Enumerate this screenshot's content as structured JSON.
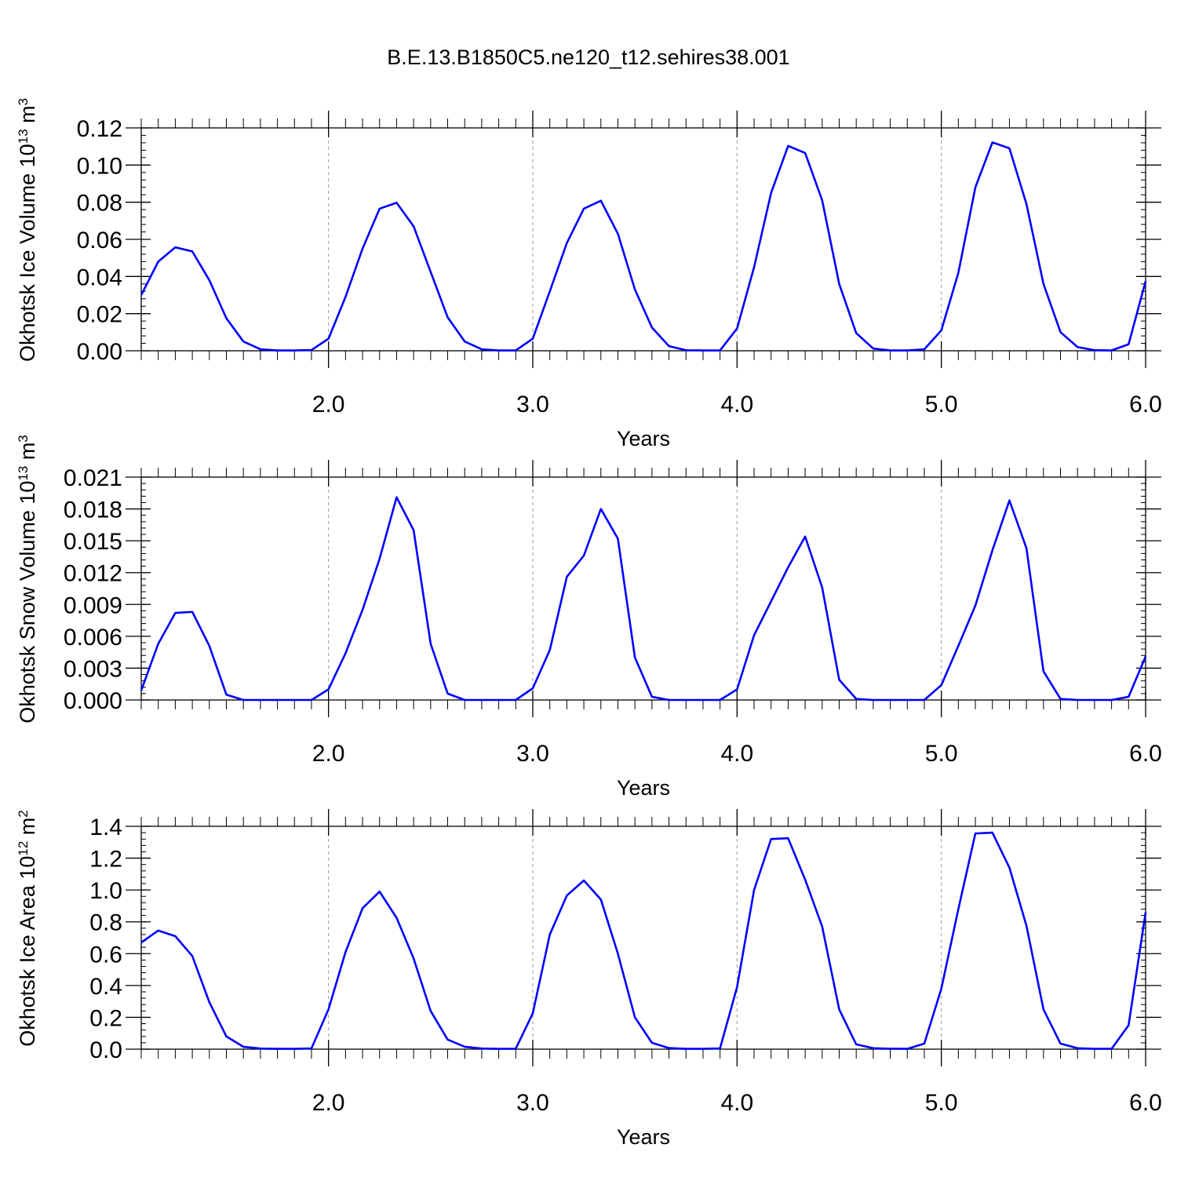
{
  "figure": {
    "title": "B.E.13.B1850C5.ne120_t12.sehires38.001",
    "line_color": "#0000ff"
  },
  "chart_data": [
    {
      "type": "line",
      "ylabel": "Okhotsk Ice Volume 10",
      "ylabel_exponent": "13",
      "ylabel_unit": " m",
      "ylabel_unit_exponent": "3",
      "xlabel": "Years",
      "xlim": [
        1.0833,
        6.0
      ],
      "ylim": [
        0,
        0.12
      ],
      "grid": "vertical-dashed",
      "x_ticks": [
        2.0,
        3.0,
        4.0,
        5.0,
        6.0
      ],
      "x_tick_labels": [
        "2.0",
        "3.0",
        "4.0",
        "5.0",
        "6.0"
      ],
      "y_ticks": [
        0,
        0.02,
        0.04,
        0.06,
        0.08,
        0.1,
        0.12
      ],
      "y_tick_labels": [
        "0.00",
        "0.02",
        "0.04",
        "0.06",
        "0.08",
        "0.10",
        "0.12"
      ],
      "y_minor_step": 0.004,
      "values": [
        0.03,
        0.048,
        0.0557,
        0.0535,
        0.038,
        0.0175,
        0.005,
        0.0008,
        0.0002,
        0.0002,
        0.0004,
        0.0065,
        0.029,
        0.055,
        0.0765,
        0.0797,
        0.067,
        0.0425,
        0.018,
        0.005,
        0.0008,
        0.0002,
        0.0002,
        0.0065,
        0.032,
        0.058,
        0.0765,
        0.0808,
        0.063,
        0.033,
        0.0125,
        0.0025,
        0.0003,
        0.0002,
        0.0002,
        0.012,
        0.045,
        0.085,
        0.1103,
        0.1065,
        0.081,
        0.036,
        0.0095,
        0.0012,
        0.0002,
        0.0002,
        0.0008,
        0.011,
        0.042,
        0.088,
        0.1122,
        0.109,
        0.079,
        0.036,
        0.01,
        0.002,
        0.0003,
        0.0002,
        0.0035,
        0.0375
      ]
    },
    {
      "type": "line",
      "ylabel": "Okhotsk Snow Volume 10",
      "ylabel_exponent": "13",
      "ylabel_unit": " m",
      "ylabel_unit_exponent": "3",
      "xlabel": "Years",
      "xlim": [
        1.0833,
        6.0
      ],
      "ylim": [
        0,
        0.021
      ],
      "grid": "vertical-dashed",
      "x_ticks": [
        2.0,
        3.0,
        4.0,
        5.0,
        6.0
      ],
      "x_tick_labels": [
        "2.0",
        "3.0",
        "4.0",
        "5.0",
        "6.0"
      ],
      "y_ticks": [
        0,
        0.003,
        0.006,
        0.009,
        0.012,
        0.015,
        0.018,
        0.021
      ],
      "y_tick_labels": [
        "0.000",
        "0.003",
        "0.006",
        "0.009",
        "0.012",
        "0.015",
        "0.018",
        "0.021"
      ],
      "y_minor_step": 0.0006,
      "values": [
        0.0009,
        0.0053,
        0.0082,
        0.0083,
        0.0051,
        0.0005,
        0.0,
        0.0,
        0.0,
        0.0,
        0.0,
        0.001,
        0.0044,
        0.0085,
        0.0133,
        0.0191,
        0.016,
        0.0053,
        0.0006,
        0.0,
        0.0,
        0.0,
        0.0,
        0.0011,
        0.0047,
        0.0116,
        0.0136,
        0.018,
        0.0152,
        0.004,
        0.0003,
        0.0,
        0.0,
        0.0,
        0.0,
        0.001,
        0.0061,
        0.0093,
        0.0125,
        0.0154,
        0.0106,
        0.0019,
        0.0001,
        0.0,
        0.0,
        0.0,
        0.0,
        0.0014,
        0.0051,
        0.0089,
        0.0141,
        0.0188,
        0.0143,
        0.0027,
        0.0001,
        0.0,
        0.0,
        0.0,
        0.0003,
        0.0041
      ]
    },
    {
      "type": "line",
      "ylabel": "Okhotsk Ice Area 10",
      "ylabel_exponent": "12",
      "ylabel_unit": " m",
      "ylabel_unit_exponent": "2",
      "xlabel": "Years",
      "xlim": [
        1.0833,
        6.0
      ],
      "ylim": [
        0,
        1.4
      ],
      "grid": "vertical-dashed",
      "x_ticks": [
        2.0,
        3.0,
        4.0,
        5.0,
        6.0
      ],
      "x_tick_labels": [
        "2.0",
        "3.0",
        "4.0",
        "5.0",
        "6.0"
      ],
      "y_ticks": [
        0,
        0.2,
        0.4,
        0.6,
        0.8,
        1.0,
        1.2,
        1.4
      ],
      "y_tick_labels": [
        "0.0",
        "0.2",
        "0.4",
        "0.6",
        "0.8",
        "1.0",
        "1.2",
        "1.4"
      ],
      "y_minor_step": 0.04,
      "values": [
        0.67,
        0.745,
        0.71,
        0.585,
        0.295,
        0.08,
        0.015,
        0.004,
        0.002,
        0.002,
        0.005,
        0.25,
        0.61,
        0.885,
        0.99,
        0.825,
        0.57,
        0.24,
        0.06,
        0.015,
        0.004,
        0.002,
        0.003,
        0.225,
        0.72,
        0.965,
        1.06,
        0.94,
        0.6,
        0.2,
        0.04,
        0.007,
        0.002,
        0.002,
        0.005,
        0.39,
        1.0,
        1.32,
        1.325,
        1.065,
        0.77,
        0.25,
        0.03,
        0.006,
        0.003,
        0.002,
        0.035,
        0.38,
        0.88,
        1.355,
        1.36,
        1.14,
        0.775,
        0.25,
        0.035,
        0.006,
        0.002,
        0.002,
        0.15,
        0.86
      ]
    }
  ]
}
